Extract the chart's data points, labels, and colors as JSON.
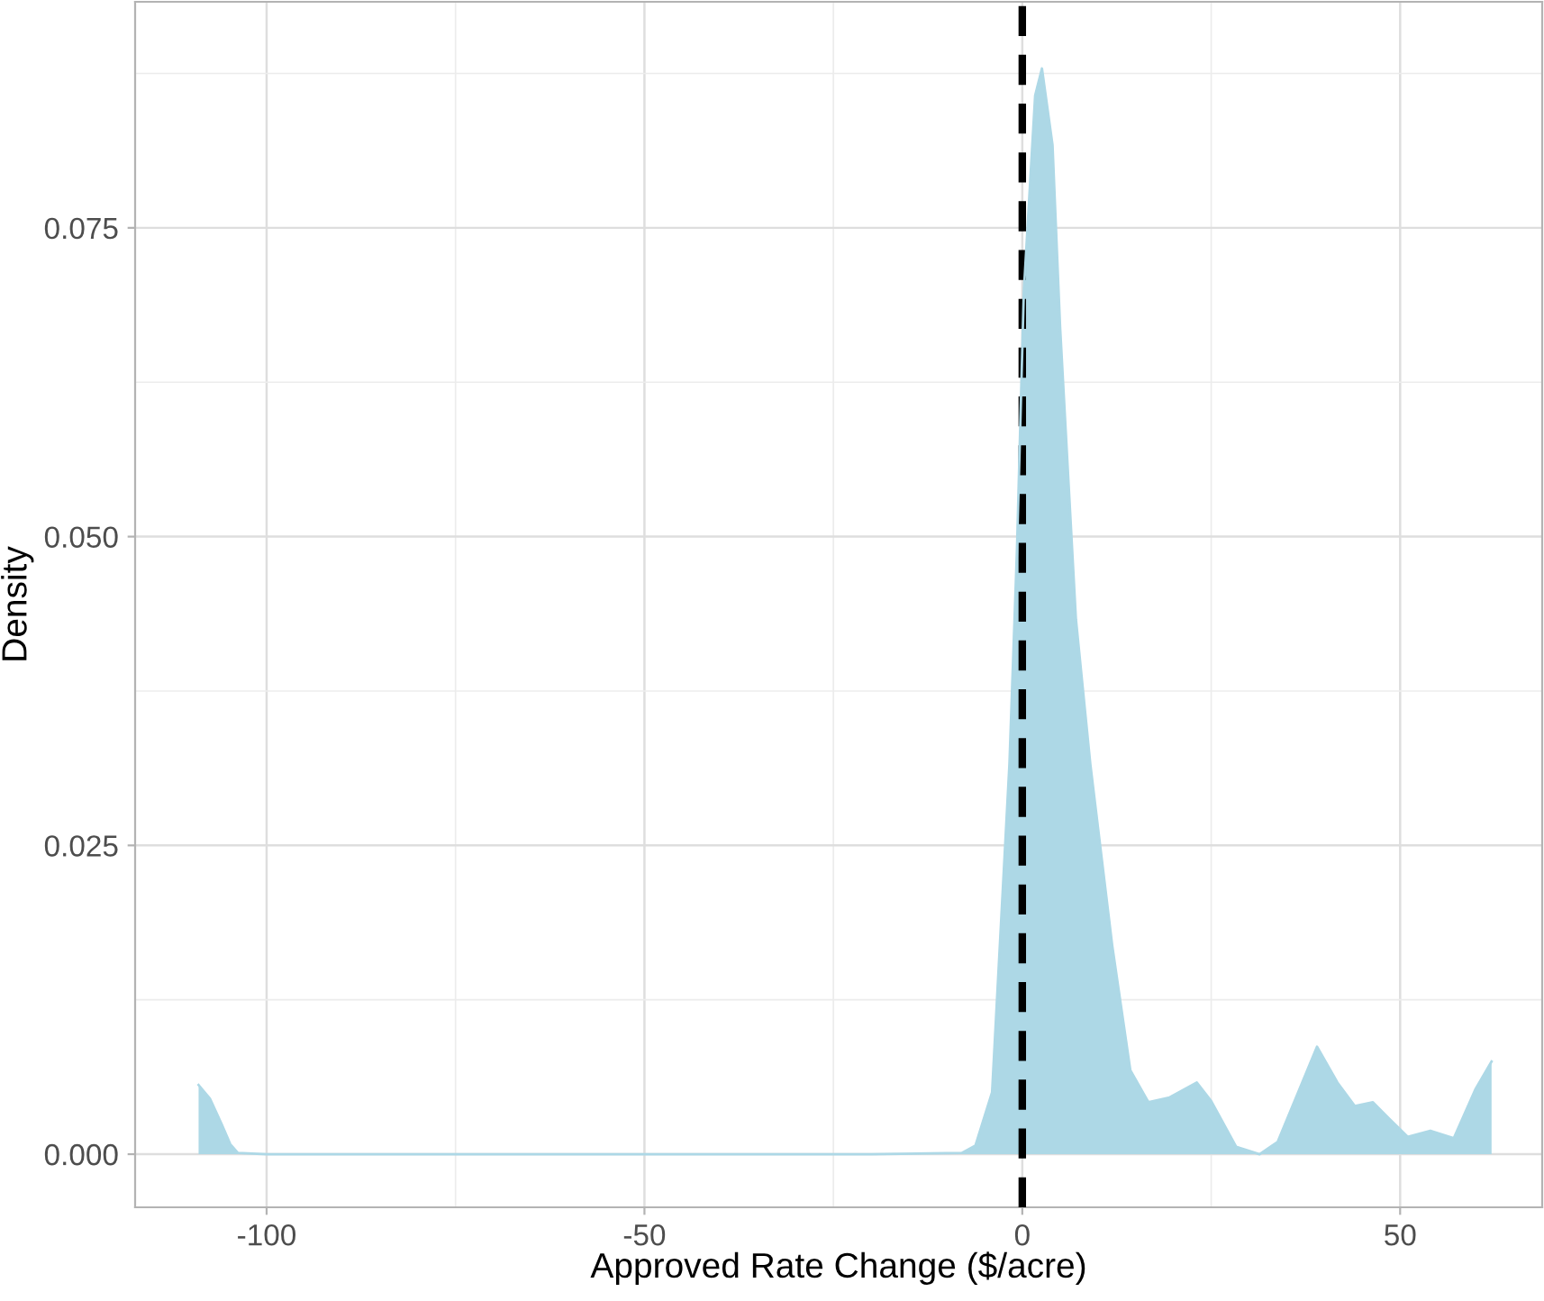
{
  "chart_data": {
    "type": "area",
    "xlabel": "Approved Rate Change ($/acre)",
    "ylabel": "Density",
    "series": [
      {
        "color": "#add8e6",
        "x": [
          -109,
          -107.5,
          -106,
          -104.8,
          -103.8,
          -100,
          -60,
          -20,
          -8,
          -6.2,
          -4.0,
          -1.7,
          -0.7,
          0.2,
          1.7,
          2.6,
          4.0,
          5.0,
          7.1,
          9.0,
          11.9,
          14.3,
          16.7,
          19.5,
          23.1,
          25.0,
          28.3,
          31.4,
          33.8,
          39.0,
          41.7,
          44.0,
          46.4,
          48.5,
          51.0,
          54.0,
          57.1,
          60.0,
          62.1
        ],
        "values": [
          0.0056,
          0.0045,
          0.0025,
          0.0008,
          0.0001,
          0,
          0,
          0,
          0.0001,
          0.0007,
          0.005,
          0.0316,
          0.049,
          0.0698,
          0.0857,
          0.0879,
          0.0817,
          0.067,
          0.0433,
          0.0316,
          0.0169,
          0.0068,
          0.0042,
          0.0046,
          0.0058,
          0.0043,
          0.0006,
          0,
          0.001,
          0.0087,
          0.0058,
          0.0039,
          0.0042,
          0.0029,
          0.0014,
          0.0019,
          0.0013,
          0.0053,
          0.0075
        ]
      }
    ],
    "xlim": [
      -117.4,
      68.8
    ],
    "ylim": [
      -0.0043,
      0.0933
    ],
    "xticks": [
      {
        "value": -100,
        "label": "-100"
      },
      {
        "value": -75,
        "label": null
      },
      {
        "value": -50,
        "label": "-50"
      },
      {
        "value": -25,
        "label": null
      },
      {
        "value": 0,
        "label": "0"
      },
      {
        "value": 25,
        "label": null
      },
      {
        "value": 50,
        "label": "50"
      }
    ],
    "yticks": [
      {
        "value": 0,
        "label": "0.000"
      },
      {
        "value": 0.0125,
        "label": null
      },
      {
        "value": 0.025,
        "label": "0.025"
      },
      {
        "value": 0.0375,
        "label": null
      },
      {
        "value": 0.05,
        "label": "0.050"
      },
      {
        "value": 0.0625,
        "label": null
      },
      {
        "value": 0.075,
        "label": "0.075"
      },
      {
        "value": 0.0875,
        "label": null
      }
    ],
    "ref_lines": [
      {
        "axis": "x",
        "value": 0,
        "color": "#000000",
        "line_style": "dashed"
      }
    ],
    "grid": true,
    "legend": false
  }
}
